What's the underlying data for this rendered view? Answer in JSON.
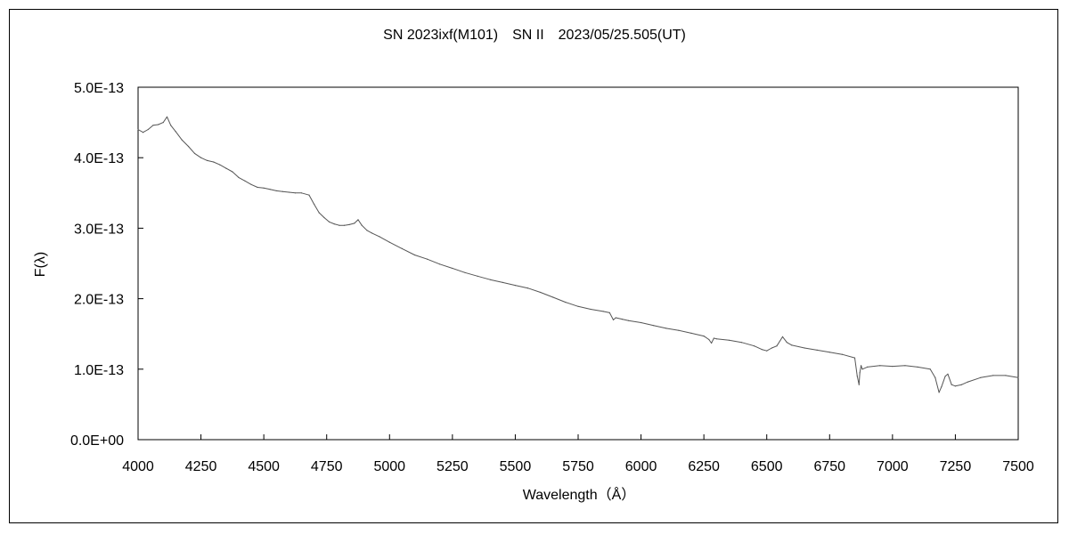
{
  "chart_data": {
    "type": "line",
    "title": "SN 2023ixf(M101)　SN II　2023/05/25.505(UT)",
    "xlabel": "Wavelength（Å）",
    "ylabel": "F(λ)",
    "xlim": [
      4000,
      7500
    ],
    "ylim": [
      0,
      5e-13
    ],
    "x_ticks": [
      4000,
      4250,
      4500,
      4750,
      5000,
      5250,
      5500,
      5750,
      6000,
      6250,
      6500,
      6750,
      7000,
      7250,
      7500
    ],
    "x_tick_labels": [
      "4000",
      "4250",
      "4500",
      "4750",
      "5000",
      "5250",
      "5500",
      "5750",
      "6000",
      "6250",
      "6500",
      "6750",
      "7000",
      "7250",
      "7500"
    ],
    "y_ticks": [
      0,
      1e-13,
      2e-13,
      3e-13,
      4e-13,
      5e-13
    ],
    "y_tick_labels": [
      "0.0E+00",
      "1.0E-13",
      "2.0E-13",
      "3.0E-13",
      "4.0E-13",
      "5.0E-13"
    ],
    "grid": false,
    "legend": "none",
    "colors": {
      "line": "#555555",
      "axes": "#000000"
    },
    "series": [
      {
        "x": [
          4000,
          4020,
          4040,
          4060,
          4080,
          4100,
          4115,
          4130,
          4150,
          4175,
          4200,
          4225,
          4250,
          4275,
          4300,
          4325,
          4350,
          4375,
          4400,
          4425,
          4450,
          4475,
          4500,
          4525,
          4550,
          4575,
          4600,
          4625,
          4650,
          4680,
          4700,
          4720,
          4740,
          4760,
          4780,
          4800,
          4820,
          4840,
          4860,
          4875,
          4890,
          4910,
          4930,
          4960,
          5000,
          5050,
          5100,
          5150,
          5200,
          5250,
          5300,
          5350,
          5400,
          5450,
          5500,
          5550,
          5600,
          5650,
          5700,
          5750,
          5800,
          5850,
          5875,
          5890,
          5900,
          5925,
          5950,
          6000,
          6050,
          6100,
          6150,
          6200,
          6250,
          6270,
          6280,
          6290,
          6300,
          6350,
          6400,
          6450,
          6480,
          6500,
          6520,
          6540,
          6563,
          6580,
          6600,
          6650,
          6700,
          6750,
          6800,
          6850,
          6860,
          6867,
          6870,
          6875,
          6880,
          6900,
          6950,
          7000,
          7050,
          7100,
          7150,
          7170,
          7185,
          7195,
          7210,
          7220,
          7235,
          7250,
          7275,
          7300,
          7350,
          7400,
          7450,
          7500
        ],
        "y": [
          4.4e-13,
          4.36e-13,
          4.4e-13,
          4.46e-13,
          4.47e-13,
          4.5e-13,
          4.58e-13,
          4.46e-13,
          4.37e-13,
          4.25e-13,
          4.16e-13,
          4.06e-13,
          4e-13,
          3.96e-13,
          3.94e-13,
          3.9e-13,
          3.85e-13,
          3.8e-13,
          3.72e-13,
          3.67e-13,
          3.62e-13,
          3.58e-13,
          3.57e-13,
          3.55e-13,
          3.53e-13,
          3.52e-13,
          3.51e-13,
          3.5e-13,
          3.5e-13,
          3.47e-13,
          3.34e-13,
          3.22e-13,
          3.15e-13,
          3.09e-13,
          3.06e-13,
          3.04e-13,
          3.04e-13,
          3.05e-13,
          3.07e-13,
          3.12e-13,
          3.04e-13,
          2.97e-13,
          2.93e-13,
          2.88e-13,
          2.8e-13,
          2.71e-13,
          2.62e-13,
          2.56e-13,
          2.49e-13,
          2.43e-13,
          2.37e-13,
          2.32e-13,
          2.27e-13,
          2.23e-13,
          2.19e-13,
          2.15e-13,
          2.09e-13,
          2.02e-13,
          1.95e-13,
          1.89e-13,
          1.85e-13,
          1.82e-13,
          1.8e-13,
          1.7e-13,
          1.73e-13,
          1.71e-13,
          1.69e-13,
          1.66e-13,
          1.62e-13,
          1.58e-13,
          1.55e-13,
          1.51e-13,
          1.47e-13,
          1.42e-13,
          1.37e-13,
          1.44e-13,
          1.43e-13,
          1.41e-13,
          1.38e-13,
          1.33e-13,
          1.28e-13,
          1.26e-13,
          1.3e-13,
          1.33e-13,
          1.46e-13,
          1.38e-13,
          1.34e-13,
          1.3e-13,
          1.27e-13,
          1.24e-13,
          1.21e-13,
          1.16e-13,
          9e-14,
          7.8e-14,
          9.5e-14,
          1.05e-13,
          1e-13,
          1.03e-13,
          1.05e-13,
          1.04e-13,
          1.05e-13,
          1.03e-13,
          1e-13,
          8.8e-14,
          6.7e-14,
          7.5e-14,
          9e-14,
          9.3e-14,
          7.8e-14,
          7.6e-14,
          7.8e-14,
          8.2e-14,
          8.8e-14,
          9.1e-14,
          9.1e-14,
          8.8e-14
        ]
      }
    ]
  }
}
